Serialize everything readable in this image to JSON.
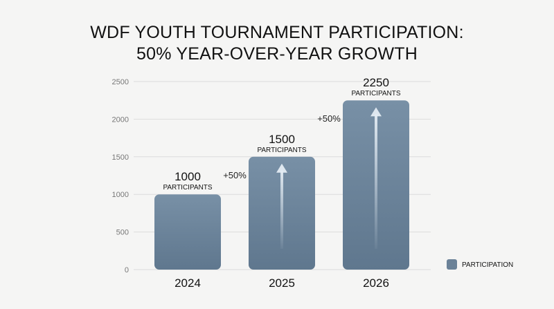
{
  "title": {
    "line1": "WDF YOUTH TOURNAMENT PARTICIPATION:",
    "line2": "50% YEAR-OVER-YEAR GROWTH"
  },
  "chart_data": {
    "type": "bar",
    "categories": [
      "2024",
      "2025",
      "2026"
    ],
    "series": [
      {
        "name": "PARTICIPATION",
        "values": [
          1000,
          1500,
          2250
        ]
      }
    ],
    "data_labels": [
      "1000",
      "1500",
      "2250"
    ],
    "data_sublabel": "PARTICIPANTS",
    "growth_annotations": [
      "+50%",
      "+50%"
    ],
    "y_ticks": [
      0,
      500,
      1000,
      1500,
      2000,
      2500
    ],
    "ylim": [
      0,
      2500
    ],
    "grid": true,
    "legend": {
      "label": "PARTICIPATION",
      "placement": "bottom-right"
    },
    "colors": {
      "bar": "#6b8298",
      "grid": "#dcdcdc",
      "arrow": "#dde6ee"
    }
  }
}
